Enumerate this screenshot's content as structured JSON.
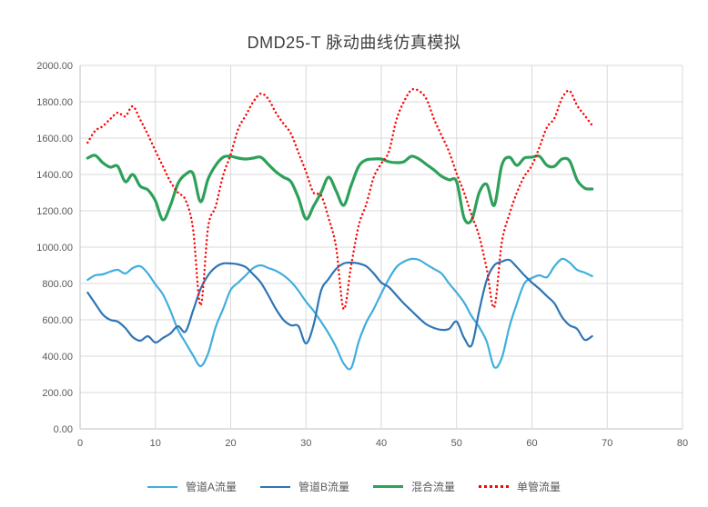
{
  "title": "DMD25-T 脉动曲线仿真模拟",
  "colors": {
    "grid": "#d9d9d9",
    "axis": "#bfbfbf",
    "tick_text": "#595959",
    "title_text": "#3f3f3f",
    "pipe_a": "#41aedd",
    "pipe_b": "#2e75b6",
    "mixed": "#2da05a",
    "single": "#ff0000"
  },
  "chart_data": {
    "type": "line",
    "title": "DMD25-T 脉动曲线仿真模拟",
    "xlabel": "",
    "ylabel": "",
    "xlim": [
      0,
      80
    ],
    "ylim": [
      0,
      2000
    ],
    "grid": true,
    "legend_position": "bottom",
    "x_ticks": [
      "0",
      "10",
      "20",
      "30",
      "40",
      "50",
      "60",
      "70",
      "80"
    ],
    "y_ticks": [
      "0.00",
      "200.00",
      "400.00",
      "600.00",
      "800.00",
      "1000.00",
      "1200.00",
      "1400.00",
      "1600.00",
      "1800.00",
      "2000.00"
    ],
    "x": [
      1,
      2,
      3,
      4,
      5,
      6,
      7,
      8,
      9,
      10,
      11,
      12,
      13,
      14,
      15,
      16,
      17,
      18,
      19,
      20,
      21,
      22,
      23,
      24,
      25,
      26,
      27,
      28,
      29,
      30,
      31,
      32,
      33,
      34,
      35,
      36,
      37,
      38,
      39,
      40,
      41,
      42,
      43,
      44,
      45,
      46,
      47,
      48,
      49,
      50,
      51,
      52,
      53,
      54,
      55,
      56,
      57,
      58,
      59,
      60,
      61,
      62,
      63,
      64,
      65,
      66,
      67,
      68
    ],
    "series": [
      {
        "id": "pipe-a-flow",
        "name": "管道A流量",
        "color": "#41aedd",
        "width": 2.2,
        "dash": "solid",
        "values": [
          820,
          845,
          850,
          865,
          875,
          855,
          885,
          895,
          855,
          795,
          740,
          650,
          545,
          475,
          405,
          345,
          415,
          560,
          660,
          765,
          805,
          845,
          885,
          900,
          885,
          870,
          845,
          810,
          760,
          700,
          650,
          590,
          525,
          450,
          360,
          335,
          480,
          585,
          660,
          745,
          825,
          890,
          920,
          935,
          930,
          905,
          880,
          855,
          800,
          750,
          695,
          620,
          560,
          480,
          340,
          390,
          560,
          690,
          800,
          830,
          845,
          835,
          895,
          935,
          915,
          875,
          860,
          840
        ]
      },
      {
        "id": "pipe-b-flow",
        "name": "管道B流量",
        "color": "#2e75b6",
        "width": 2.2,
        "dash": "solid",
        "values": [
          750,
          690,
          630,
          600,
          590,
          555,
          505,
          485,
          510,
          475,
          500,
          525,
          565,
          535,
          650,
          770,
          845,
          890,
          910,
          910,
          905,
          890,
          850,
          805,
          735,
          660,
          600,
          570,
          565,
          470,
          570,
          760,
          825,
          880,
          910,
          915,
          910,
          895,
          855,
          805,
          780,
          735,
          690,
          650,
          610,
          575,
          555,
          545,
          550,
          590,
          500,
          460,
          650,
          820,
          900,
          920,
          930,
          890,
          845,
          805,
          770,
          730,
          690,
          615,
          570,
          550,
          490,
          510
        ]
      },
      {
        "id": "mixed-flow",
        "name": "混合流量",
        "color": "#2da05a",
        "width": 3.2,
        "dash": "solid",
        "values": [
          1490,
          1505,
          1465,
          1440,
          1445,
          1360,
          1400,
          1335,
          1315,
          1255,
          1150,
          1230,
          1350,
          1400,
          1405,
          1250,
          1375,
          1450,
          1495,
          1500,
          1490,
          1485,
          1490,
          1495,
          1455,
          1415,
          1385,
          1360,
          1270,
          1155,
          1225,
          1300,
          1385,
          1310,
          1230,
          1340,
          1445,
          1480,
          1485,
          1485,
          1470,
          1465,
          1470,
          1500,
          1485,
          1455,
          1425,
          1390,
          1370,
          1360,
          1160,
          1150,
          1300,
          1345,
          1230,
          1450,
          1495,
          1450,
          1490,
          1495,
          1500,
          1450,
          1445,
          1485,
          1475,
          1370,
          1325,
          1320
        ]
      },
      {
        "id": "single-pipe-flow",
        "name": "单管流量",
        "color": "#ff0000",
        "width": 2.4,
        "dash": "dotted",
        "values": [
          1575,
          1640,
          1665,
          1705,
          1740,
          1720,
          1775,
          1700,
          1620,
          1530,
          1445,
          1360,
          1300,
          1260,
          1100,
          680,
          1110,
          1225,
          1395,
          1510,
          1650,
          1725,
          1800,
          1845,
          1815,
          1740,
          1680,
          1625,
          1520,
          1415,
          1300,
          1285,
          1160,
          1000,
          660,
          900,
          1120,
          1235,
          1385,
          1460,
          1525,
          1700,
          1800,
          1865,
          1860,
          1815,
          1705,
          1615,
          1525,
          1405,
          1300,
          1175,
          1060,
          880,
          670,
          1025,
          1180,
          1300,
          1390,
          1450,
          1550,
          1660,
          1710,
          1820,
          1860,
          1780,
          1725,
          1670
        ]
      }
    ]
  },
  "legend": {
    "items": [
      "管道A流量",
      "管道B流量",
      "混合流量",
      "单管流量"
    ]
  }
}
